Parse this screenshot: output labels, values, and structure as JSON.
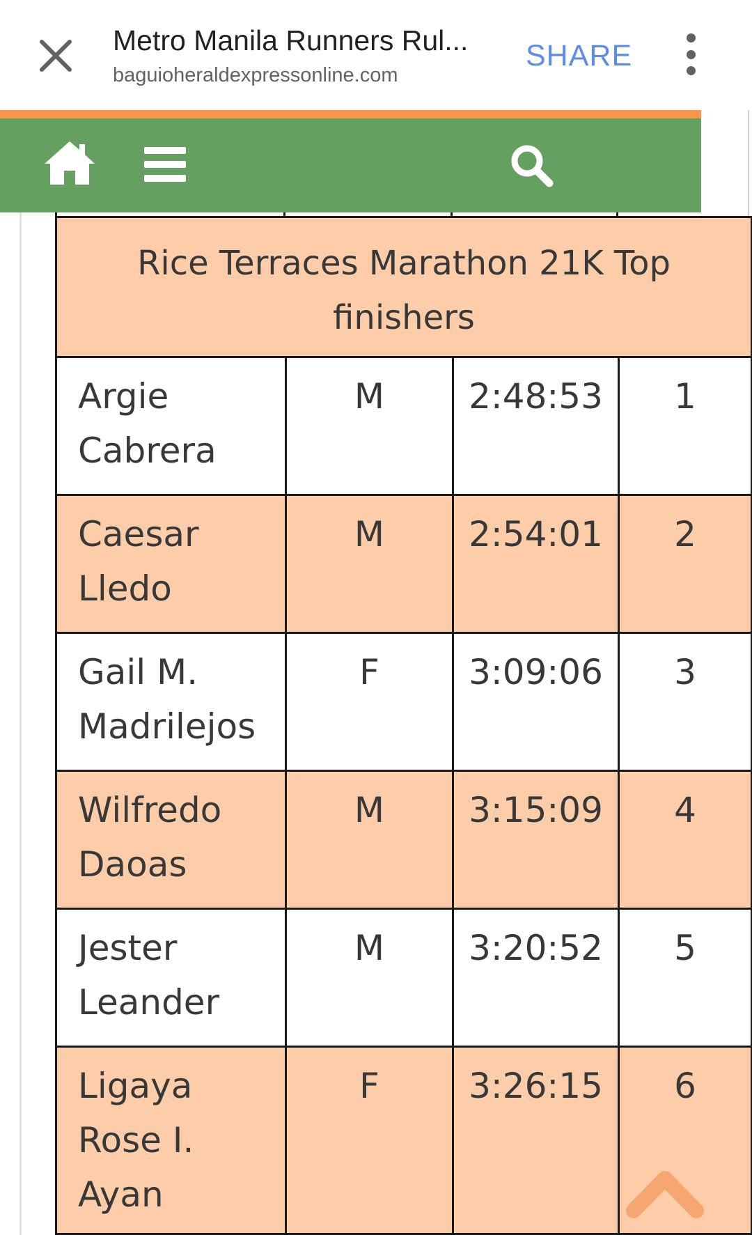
{
  "browser": {
    "title": "Metro Manila Runners Rul...",
    "url": "baguioheraldexpressonline.com",
    "share_label": "SHARE",
    "icons": [
      "close-icon",
      "more-vertical-icon"
    ]
  },
  "site_nav": {
    "icons": [
      "home-icon",
      "menu-icon",
      "search-icon"
    ],
    "colors": {
      "nav_bg": "#66a060",
      "accent_line": "#f5964b"
    }
  },
  "results_table": {
    "header": "Rice Terraces Marathon 21K Top finishers",
    "rows": [
      {
        "name": "Argie Cabrera",
        "gender": "M",
        "time": "2:48:53",
        "rank": "1"
      },
      {
        "name": "Caesar Lledo",
        "gender": "M",
        "time": "2:54:01",
        "rank": "2"
      },
      {
        "name": "Gail M. Madrilejos",
        "gender": "F",
        "time": "3:09:06",
        "rank": "3"
      },
      {
        "name": "Wilfredo Daoas",
        "gender": "M",
        "time": "3:15:09",
        "rank": "4"
      },
      {
        "name": "Jester Leander",
        "gender": "M",
        "time": "3:20:52",
        "rank": "5"
      },
      {
        "name": "Ligaya Rose I. Ayan",
        "gender": "F",
        "time": "3:26:15",
        "rank": "6"
      }
    ],
    "colors": {
      "highlight_row": "#fdcdaa",
      "plain_row": "#ffffff"
    }
  },
  "scroll_top_icon": "chevron-up-icon"
}
